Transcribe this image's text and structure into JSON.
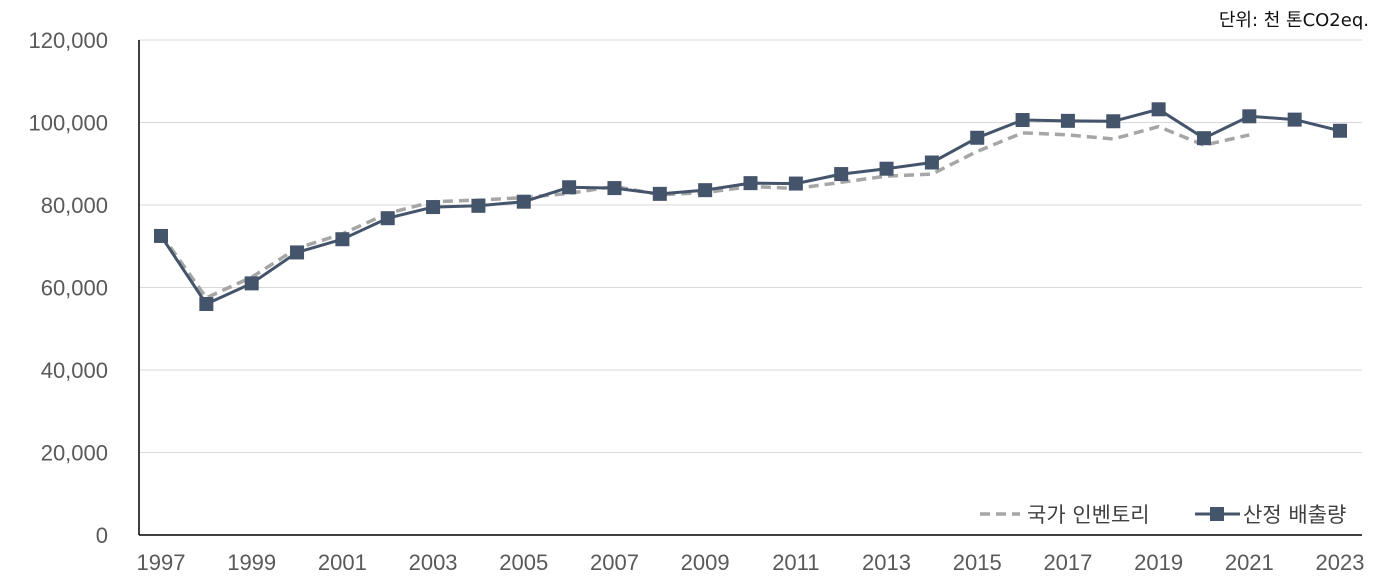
{
  "unit_label": "단위: 천 톤CO2eq.",
  "colors": {
    "inventory": "#A6A6A6",
    "calculated": "#44546A",
    "grid": "#D9D9D9",
    "axis": "#000000"
  },
  "chart_data": {
    "type": "line",
    "title": "",
    "xlabel": "",
    "ylabel": "",
    "ylim": [
      0,
      120000
    ],
    "yticks": [
      0,
      20000,
      40000,
      60000,
      80000,
      100000,
      120000
    ],
    "ytick_labels": [
      "0",
      "20,000",
      "40,000",
      "60,000",
      "80,000",
      "100,000",
      "120,000"
    ],
    "xticks": [
      1997,
      1999,
      2001,
      2003,
      2005,
      2007,
      2009,
      2011,
      2013,
      2015,
      2017,
      2019,
      2021,
      2023
    ],
    "xlim": [
      1997,
      2023
    ],
    "grid": true,
    "legend": "bottom-right",
    "series": [
      {
        "name": "국가 인벤토리",
        "style": "dashed",
        "x": [
          1997,
          1998,
          1999,
          2000,
          2001,
          2002,
          2003,
          2004,
          2005,
          2006,
          2007,
          2008,
          2009,
          2010,
          2011,
          2012,
          2013,
          2014,
          2015,
          2016,
          2017,
          2018,
          2019,
          2020,
          2021
        ],
        "values": [
          73000,
          57500,
          62500,
          69500,
          73000,
          78000,
          80800,
          81200,
          81800,
          82800,
          84500,
          82500,
          83000,
          84500,
          84000,
          85500,
          87000,
          87500,
          93000,
          97500,
          97000,
          96000,
          99000,
          94500,
          97000
        ]
      },
      {
        "name": "산정 배출량",
        "style": "solid-square",
        "x": [
          1997,
          1998,
          1999,
          2000,
          2001,
          2002,
          2003,
          2004,
          2005,
          2006,
          2007,
          2008,
          2009,
          2010,
          2011,
          2012,
          2013,
          2014,
          2015,
          2016,
          2017,
          2018,
          2019,
          2020,
          2021,
          2022,
          2023
        ],
        "values": [
          72500,
          56000,
          61000,
          68500,
          71700,
          76800,
          79500,
          79800,
          80800,
          84300,
          84100,
          82700,
          83600,
          85300,
          85200,
          87500,
          88800,
          90300,
          96300,
          100600,
          100400,
          100300,
          103200,
          96200,
          101500,
          100700,
          98000
        ]
      }
    ]
  }
}
